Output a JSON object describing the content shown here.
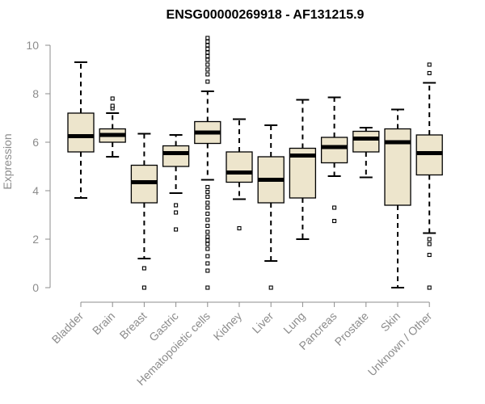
{
  "chart_data": {
    "type": "boxplot",
    "title": "ENSG00000269918 - AF131215.9",
    "xlabel": "",
    "ylabel": "Expression",
    "ylim": [
      0,
      10.3
    ],
    "yticks": [
      0,
      2,
      4,
      6,
      8,
      10
    ],
    "box_fill": "#ede5cc",
    "median_color": "#000000",
    "axis_color": "#8c8c8c",
    "categories": [
      "Bladder",
      "Brain",
      "Breast",
      "Gastric",
      "Hematopoietic cells",
      "Kidney",
      "Liver",
      "Lung",
      "Pancreas",
      "Prostate",
      "Skin",
      "Unknown / Other"
    ],
    "boxes": [
      {
        "label": "Bladder",
        "whisker_low": 3.7,
        "q1": 5.6,
        "median": 6.25,
        "q3": 7.2,
        "whisker_high": 9.3,
        "outliers": []
      },
      {
        "label": "Brain",
        "whisker_low": 5.4,
        "q1": 6.0,
        "median": 6.3,
        "q3": 6.55,
        "whisker_high": 7.2,
        "outliers": [
          7.4,
          7.5,
          7.8
        ]
      },
      {
        "label": "Breast",
        "whisker_low": 1.2,
        "q1": 3.5,
        "median": 4.35,
        "q3": 5.05,
        "whisker_high": 6.35,
        "outliers": [
          0.0,
          0.8
        ]
      },
      {
        "label": "Gastric",
        "whisker_low": 3.9,
        "q1": 5.0,
        "median": 5.55,
        "q3": 5.85,
        "whisker_high": 6.3,
        "outliers": [
          2.4,
          3.1,
          3.4
        ]
      },
      {
        "label": "Hematopoietic cells",
        "whisker_low": 4.45,
        "q1": 5.95,
        "median": 6.4,
        "q3": 6.85,
        "whisker_high": 8.1,
        "outliers": [
          0.0,
          0.7,
          1.0,
          1.3,
          1.6,
          1.8,
          1.95,
          2.1,
          2.3,
          2.55,
          2.8,
          3.05,
          3.3,
          3.5,
          3.75,
          3.95,
          4.15,
          8.5,
          8.8,
          9.0,
          9.2,
          9.4,
          9.55,
          9.7,
          9.85,
          10.0,
          10.15,
          10.3
        ]
      },
      {
        "label": "Kidney",
        "whisker_low": 3.65,
        "q1": 4.35,
        "median": 4.75,
        "q3": 5.6,
        "whisker_high": 6.95,
        "outliers": [
          2.45
        ]
      },
      {
        "label": "Liver",
        "whisker_low": 1.1,
        "q1": 3.5,
        "median": 4.45,
        "q3": 5.4,
        "whisker_high": 6.7,
        "outliers": [
          0.0
        ]
      },
      {
        "label": "Lung",
        "whisker_low": 2.0,
        "q1": 3.7,
        "median": 5.45,
        "q3": 5.75,
        "whisker_high": 7.75,
        "outliers": []
      },
      {
        "label": "Pancreas",
        "whisker_low": 4.6,
        "q1": 5.15,
        "median": 5.8,
        "q3": 6.2,
        "whisker_high": 7.85,
        "outliers": [
          2.75,
          3.3
        ]
      },
      {
        "label": "Prostate",
        "whisker_low": 4.55,
        "q1": 5.6,
        "median": 6.15,
        "q3": 6.45,
        "whisker_high": 6.6,
        "outliers": []
      },
      {
        "label": "Skin",
        "whisker_low": 0.0,
        "q1": 3.4,
        "median": 6.0,
        "q3": 6.55,
        "whisker_high": 7.35,
        "outliers": []
      },
      {
        "label": "Unknown / Other",
        "whisker_low": 2.25,
        "q1": 4.65,
        "median": 5.55,
        "q3": 6.3,
        "whisker_high": 8.45,
        "outliers": [
          0.0,
          1.35,
          1.8,
          2.0,
          8.85,
          9.2
        ]
      }
    ]
  }
}
